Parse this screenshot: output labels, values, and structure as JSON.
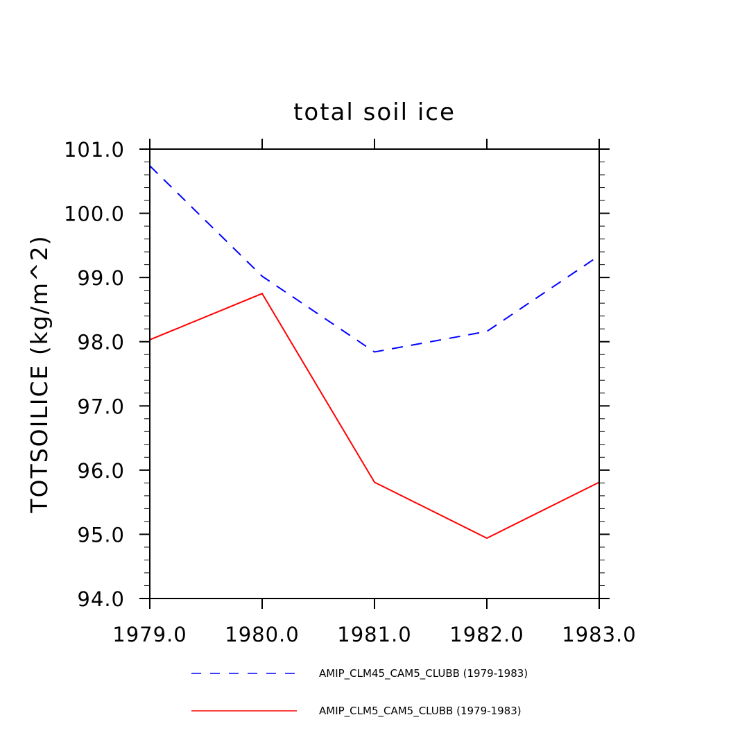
{
  "chart_data": {
    "type": "line",
    "title": "total soil ice",
    "xlabel": "",
    "ylabel": "TOTSOILICE   (kg/m^2)",
    "x": [
      1979,
      1980,
      1981,
      1982,
      1983
    ],
    "xlim": [
      1979,
      1983
    ],
    "ylim": [
      94,
      101
    ],
    "x_tick_labels": [
      "1979.0",
      "1980.0",
      "1981.0",
      "1982.0",
      "1983.0"
    ],
    "y_tick_labels": [
      "94.0",
      "95.0",
      "96.0",
      "97.0",
      "98.0",
      "99.0",
      "100.0",
      "101.0"
    ],
    "grid": false,
    "legend_position": "bottom",
    "series": [
      {
        "name": "AMIP_CLM45_CAM5_CLUBB (1979-1983)",
        "values": [
          100.74,
          99.02,
          97.84,
          98.16,
          99.34
        ],
        "color": "#0000ff",
        "style": "dashed"
      },
      {
        "name": "AMIP_CLM5_CAM5_CLUBB (1979-1983)",
        "values": [
          98.03,
          98.75,
          95.81,
          94.94,
          95.81
        ],
        "color": "#ff0000",
        "style": "solid"
      }
    ]
  }
}
